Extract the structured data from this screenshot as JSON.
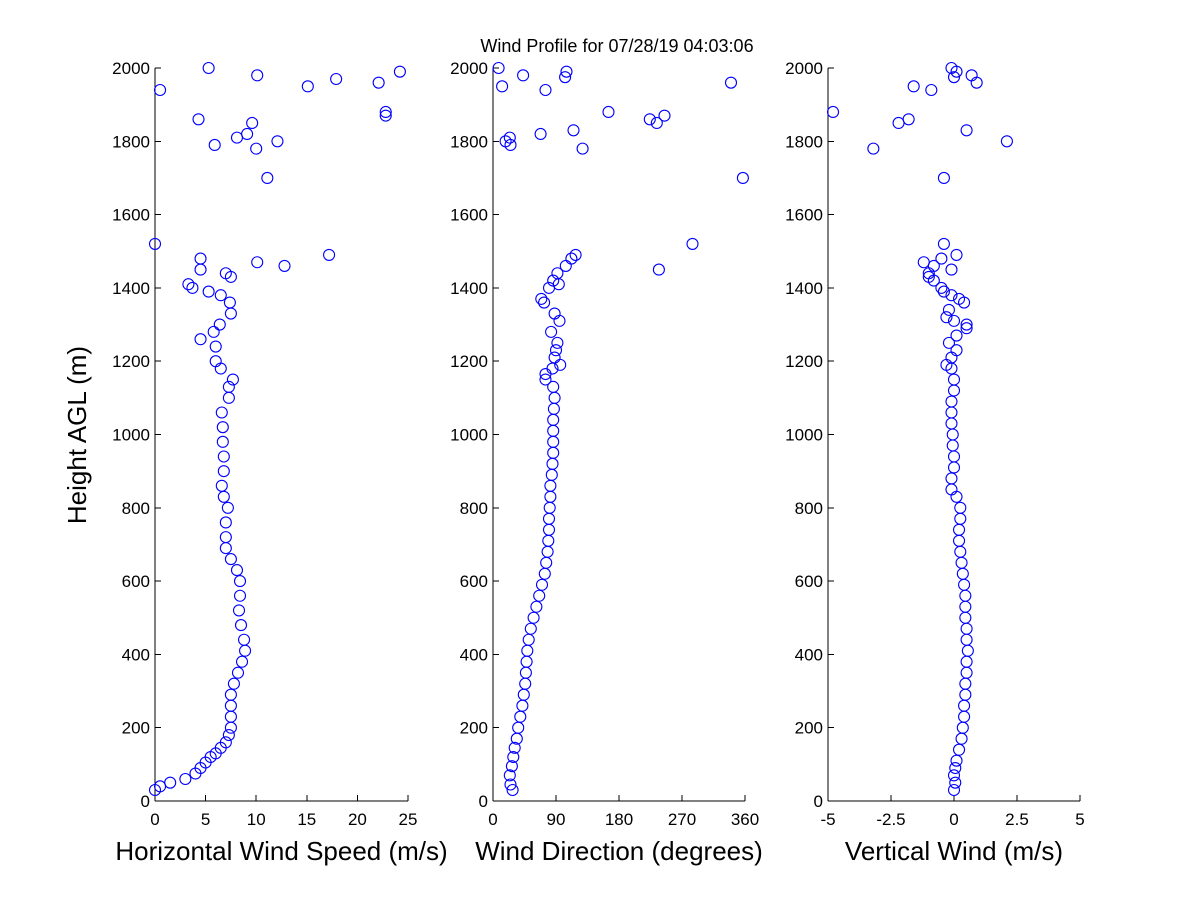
{
  "title": "Wind Profile for  07/28/19 04:03:06",
  "ylabel": "Height AGL (m)",
  "colors": {
    "marker": "#0000ff",
    "axis": "#000000",
    "background": "#ffffff"
  },
  "chart_data": [
    {
      "type": "scatter",
      "xlabel": "Horizontal Wind Speed (m/s)",
      "xlim": [
        0,
        25
      ],
      "ylim": [
        0,
        2000
      ],
      "xticks": [
        0,
        5,
        10,
        15,
        20,
        25
      ],
      "xtick_labels": [
        "0",
        "5",
        "10",
        "15",
        "20",
        "25"
      ],
      "yticks": [
        0,
        200,
        400,
        600,
        800,
        1000,
        1200,
        1400,
        1600,
        1800,
        2000
      ],
      "ytick_labels": [
        "0",
        "200",
        "400",
        "600",
        "800",
        "1000",
        "1200",
        "1400",
        "1600",
        "1800",
        "2000"
      ],
      "grid": false,
      "points": [
        [
          0,
          30
        ],
        [
          0.5,
          40
        ],
        [
          1.5,
          50
        ],
        [
          3,
          60
        ],
        [
          4,
          75
        ],
        [
          4.5,
          90
        ],
        [
          5,
          105
        ],
        [
          5.5,
          120
        ],
        [
          6,
          130
        ],
        [
          6.5,
          145
        ],
        [
          7,
          160
        ],
        [
          7.3,
          180
        ],
        [
          7.5,
          200
        ],
        [
          7.5,
          230
        ],
        [
          7.5,
          260
        ],
        [
          7.5,
          290
        ],
        [
          7.8,
          320
        ],
        [
          8.2,
          350
        ],
        [
          8.6,
          380
        ],
        [
          8.9,
          410
        ],
        [
          8.8,
          440
        ],
        [
          8.5,
          480
        ],
        [
          8.3,
          520
        ],
        [
          8.4,
          560
        ],
        [
          8.4,
          600
        ],
        [
          8.1,
          630
        ],
        [
          7.5,
          660
        ],
        [
          7,
          690
        ],
        [
          7,
          720
        ],
        [
          7,
          760
        ],
        [
          7.2,
          800
        ],
        [
          6.8,
          830
        ],
        [
          6.6,
          860
        ],
        [
          6.8,
          900
        ],
        [
          6.8,
          940
        ],
        [
          6.7,
          980
        ],
        [
          6.7,
          1020
        ],
        [
          6.6,
          1060
        ],
        [
          7.3,
          1100
        ],
        [
          7.3,
          1130
        ],
        [
          7.7,
          1150
        ],
        [
          6.5,
          1180
        ],
        [
          6.0,
          1200
        ],
        [
          6.0,
          1240
        ],
        [
          4.5,
          1260
        ],
        [
          5.8,
          1280
        ],
        [
          6.4,
          1300
        ],
        [
          7.5,
          1330
        ],
        [
          7.4,
          1360
        ],
        [
          6.5,
          1380
        ],
        [
          5.3,
          1390
        ],
        [
          3.7,
          1400
        ],
        [
          3.3,
          1410
        ],
        [
          7.5,
          1430
        ],
        [
          7.0,
          1440
        ],
        [
          4.5,
          1450
        ],
        [
          12.8,
          1460
        ],
        [
          10.1,
          1470
        ],
        [
          4.5,
          1480
        ],
        [
          17.2,
          1490
        ],
        [
          0,
          1520
        ],
        [
          11.1,
          1700
        ],
        [
          10.0,
          1780
        ],
        [
          5.9,
          1790
        ],
        [
          12.1,
          1800
        ],
        [
          8.1,
          1810
        ],
        [
          9.1,
          1820
        ],
        [
          9.6,
          1850
        ],
        [
          4.3,
          1860
        ],
        [
          22.8,
          1870
        ],
        [
          22.8,
          1880
        ],
        [
          0.5,
          1940
        ],
        [
          15.1,
          1950
        ],
        [
          22.1,
          1960
        ],
        [
          17.9,
          1970
        ],
        [
          10.1,
          1980
        ],
        [
          24.2,
          1990
        ],
        [
          5.3,
          2000
        ]
      ]
    },
    {
      "type": "scatter",
      "xlabel": "Wind Direction (degrees)",
      "xlim": [
        0,
        360
      ],
      "ylim": [
        0,
        2000
      ],
      "xticks": [
        0,
        90,
        180,
        270,
        360
      ],
      "xtick_labels": [
        "0",
        "90",
        "180",
        "270",
        "360"
      ],
      "yticks": [
        0,
        200,
        400,
        600,
        800,
        1000,
        1200,
        1400,
        1600,
        1800,
        2000
      ],
      "ytick_labels": [
        "0",
        "200",
        "400",
        "600",
        "800",
        "1000",
        "1200",
        "1400",
        "1600",
        "1800",
        "2000"
      ],
      "grid": false,
      "points": [
        [
          28,
          30
        ],
        [
          25,
          45
        ],
        [
          24,
          70
        ],
        [
          27,
          95
        ],
        [
          29,
          120
        ],
        [
          31,
          145
        ],
        [
          34,
          170
        ],
        [
          36,
          200
        ],
        [
          39,
          230
        ],
        [
          42,
          260
        ],
        [
          44,
          290
        ],
        [
          46,
          320
        ],
        [
          47,
          350
        ],
        [
          48,
          380
        ],
        [
          49,
          410
        ],
        [
          51,
          440
        ],
        [
          54,
          470
        ],
        [
          58,
          500
        ],
        [
          62,
          530
        ],
        [
          66,
          560
        ],
        [
          70,
          590
        ],
        [
          74,
          620
        ],
        [
          76,
          650
        ],
        [
          78,
          680
        ],
        [
          79,
          710
        ],
        [
          80,
          740
        ],
        [
          80,
          770
        ],
        [
          81,
          800
        ],
        [
          82,
          830
        ],
        [
          82,
          860
        ],
        [
          84,
          890
        ],
        [
          85,
          920
        ],
        [
          86,
          950
        ],
        [
          86,
          980
        ],
        [
          86,
          1010
        ],
        [
          86,
          1040
        ],
        [
          87,
          1070
        ],
        [
          88,
          1100
        ],
        [
          86,
          1130
        ],
        [
          75,
          1150
        ],
        [
          75,
          1165
        ],
        [
          85,
          1180
        ],
        [
          96,
          1190
        ],
        [
          88,
          1210
        ],
        [
          90,
          1230
        ],
        [
          92,
          1250
        ],
        [
          83,
          1280
        ],
        [
          95,
          1310
        ],
        [
          88,
          1330
        ],
        [
          73,
          1360
        ],
        [
          69,
          1370
        ],
        [
          80,
          1400
        ],
        [
          94,
          1410
        ],
        [
          86,
          1420
        ],
        [
          92,
          1440
        ],
        [
          104,
          1460
        ],
        [
          112,
          1480
        ],
        [
          118,
          1490
        ],
        [
          285,
          1520
        ],
        [
          237,
          1450
        ],
        [
          357,
          1700
        ],
        [
          25,
          1790
        ],
        [
          18,
          1800
        ],
        [
          128,
          1780
        ],
        [
          24,
          1810
        ],
        [
          115,
          1830
        ],
        [
          68,
          1820
        ],
        [
          224,
          1860
        ],
        [
          234,
          1850
        ],
        [
          245,
          1870
        ],
        [
          165,
          1880
        ],
        [
          75,
          1940
        ],
        [
          13,
          1950
        ],
        [
          340,
          1960
        ],
        [
          103,
          1975
        ],
        [
          43,
          1980
        ],
        [
          105,
          1990
        ],
        [
          8,
          2000
        ]
      ]
    },
    {
      "type": "scatter",
      "xlabel": "Vertical Wind (m/s)",
      "xlim": [
        -5,
        5
      ],
      "ylim": [
        0,
        2000
      ],
      "xticks": [
        -5,
        -2.5,
        0,
        2.5,
        5
      ],
      "xtick_labels": [
        "-5",
        "-2.5",
        "0",
        "2.5",
        "5"
      ],
      "yticks": [
        0,
        200,
        400,
        600,
        800,
        1000,
        1200,
        1400,
        1600,
        1800,
        2000
      ],
      "ytick_labels": [
        "0",
        "200",
        "400",
        "600",
        "800",
        "1000",
        "1200",
        "1400",
        "1600",
        "1800",
        "2000"
      ],
      "grid": false,
      "points": [
        [
          0,
          30
        ],
        [
          0.05,
          50
        ],
        [
          0,
          70
        ],
        [
          0.05,
          90
        ],
        [
          0.1,
          110
        ],
        [
          0.2,
          140
        ],
        [
          0.3,
          170
        ],
        [
          0.35,
          200
        ],
        [
          0.4,
          230
        ],
        [
          0.4,
          260
        ],
        [
          0.45,
          290
        ],
        [
          0.45,
          320
        ],
        [
          0.5,
          350
        ],
        [
          0.5,
          380
        ],
        [
          0.55,
          410
        ],
        [
          0.5,
          440
        ],
        [
          0.5,
          470
        ],
        [
          0.45,
          500
        ],
        [
          0.45,
          530
        ],
        [
          0.45,
          560
        ],
        [
          0.4,
          590
        ],
        [
          0.35,
          620
        ],
        [
          0.3,
          650
        ],
        [
          0.25,
          680
        ],
        [
          0.2,
          710
        ],
        [
          0.2,
          740
        ],
        [
          0.25,
          770
        ],
        [
          0.25,
          800
        ],
        [
          0.1,
          830
        ],
        [
          -0.1,
          850
        ],
        [
          -0.1,
          880
        ],
        [
          0,
          910
        ],
        [
          0,
          940
        ],
        [
          -0.05,
          970
        ],
        [
          -0.05,
          1000
        ],
        [
          -0.1,
          1030
        ],
        [
          -0.1,
          1060
        ],
        [
          -0.1,
          1090
        ],
        [
          0,
          1120
        ],
        [
          0,
          1150
        ],
        [
          -0.1,
          1180
        ],
        [
          -0.3,
          1190
        ],
        [
          -0.1,
          1210
        ],
        [
          0.1,
          1230
        ],
        [
          -0.2,
          1250
        ],
        [
          0.1,
          1270
        ],
        [
          0.5,
          1290
        ],
        [
          0.5,
          1300
        ],
        [
          0,
          1310
        ],
        [
          -0.3,
          1320
        ],
        [
          -0.2,
          1340
        ],
        [
          0.4,
          1360
        ],
        [
          0.2,
          1370
        ],
        [
          -0.1,
          1380
        ],
        [
          -0.4,
          1390
        ],
        [
          -0.5,
          1400
        ],
        [
          -0.8,
          1420
        ],
        [
          -1.0,
          1440
        ],
        [
          -1.2,
          1470
        ],
        [
          -0.1,
          1450
        ],
        [
          -0.5,
          1480
        ],
        [
          0.1,
          1490
        ],
        [
          -0.4,
          1520
        ],
        [
          -1.0,
          1430
        ],
        [
          -0.8,
          1460
        ],
        [
          -0.4,
          1700
        ],
        [
          -3.2,
          1780
        ],
        [
          2.1,
          1800
        ],
        [
          0.5,
          1830
        ],
        [
          -2.2,
          1850
        ],
        [
          -1.8,
          1860
        ],
        [
          -4.8,
          1880
        ],
        [
          -0.9,
          1940
        ],
        [
          -1.6,
          1950
        ],
        [
          0.9,
          1960
        ],
        [
          0,
          1975
        ],
        [
          0.7,
          1980
        ],
        [
          0.1,
          1990
        ],
        [
          -0.1,
          2000
        ]
      ]
    }
  ]
}
